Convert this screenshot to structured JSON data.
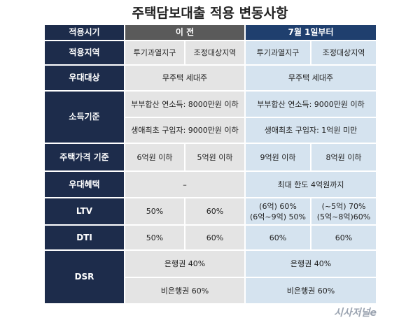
{
  "title": "주택담보대출 적용 변동사항",
  "table": {
    "header": [
      "적용시기",
      "이 전",
      "7월 1일부터"
    ],
    "rows": [
      {
        "label": "적용지역",
        "before": [
          "투기과열지구",
          "조정대상지역"
        ],
        "after": [
          "투기과열지구",
          "조정대상지역"
        ]
      },
      {
        "label": "우대대상",
        "before": "무주택 세대주",
        "after": "무주택 세대주"
      },
      {
        "label": "소득기준",
        "before": [
          "부부합산 연소득: 8000만원 이하",
          "생애최초 구입자: 9000만원 이하"
        ],
        "after": [
          "부부합산 연소득: 9000만원 이하",
          "생애최초 구입자: 1억원 미만"
        ]
      },
      {
        "label": "주택가격 기준",
        "before": [
          "6억원 이하",
          "5억원 이하"
        ],
        "after": [
          "9억원 이하",
          "8억원 이하"
        ]
      },
      {
        "label": "우대혜택",
        "before": "–",
        "after": "최대 한도 4억원까지"
      },
      {
        "label": "LTV",
        "before": [
          "50%",
          "60%"
        ],
        "after": [
          [
            "(6억) 60%",
            "(6억~9억) 50%"
          ],
          [
            "(~5억) 70%",
            "(5억~8억)60%"
          ]
        ]
      },
      {
        "label": "DTI",
        "before": [
          "50%",
          "60%"
        ],
        "after": [
          "60%",
          "60%"
        ]
      },
      {
        "label": "DSR",
        "before": [
          "은행권 40%",
          "비은행권 60%"
        ],
        "after": [
          "은행권 40%",
          "비은행권 60%"
        ]
      }
    ]
  },
  "watermark": "시사저널e"
}
